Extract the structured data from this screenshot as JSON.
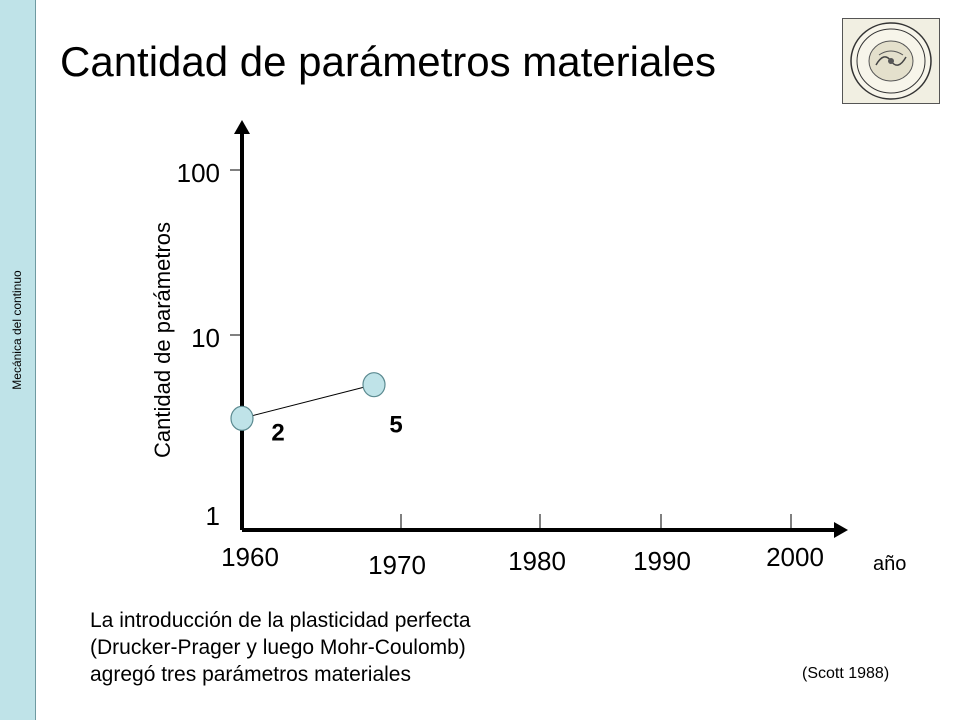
{
  "sidebar": {
    "label": "Mecánica del continuo"
  },
  "slide": {
    "title": "Cantidad de parámetros materiales"
  },
  "logo": {
    "name": "university-seal"
  },
  "chart_data": {
    "type": "line",
    "title": "",
    "xlabel": "año",
    "ylabel": "Cantidad de parámetros",
    "yscale": "log",
    "xlim": [
      1960,
      2000
    ],
    "ylim": [
      1,
      100
    ],
    "x_ticks": [
      "1960",
      "1970",
      "1980",
      "1990",
      "2000"
    ],
    "y_ticks": [
      "1",
      "10",
      "100"
    ],
    "series": [
      {
        "x": [
          1960,
          1970
        ],
        "values": [
          2,
          5
        ],
        "labels": [
          "2",
          "5"
        ]
      }
    ],
    "grid": false,
    "legend": "none"
  },
  "caption": {
    "lines": [
      "La introducción de la plasticidad perfecta",
      "(Drucker-Prager y luego Mohr-Coulomb)",
      "agregó tres parámetros materiales"
    ]
  },
  "source": "(Scott 1988)",
  "colors": {
    "sidebar": "#bfe3e8",
    "marker_fill": "#bfe3e8",
    "marker_stroke": "#5b8a90",
    "axis": "#000000"
  }
}
